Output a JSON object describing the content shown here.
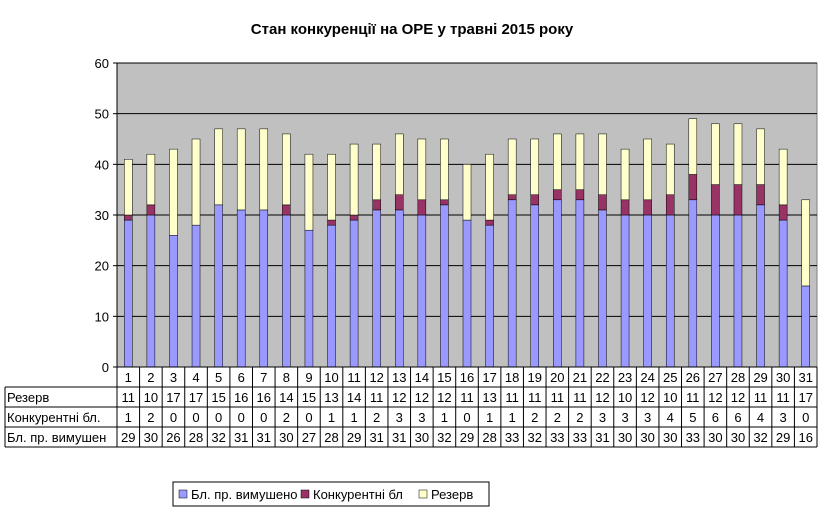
{
  "chart_data": {
    "type": "bar",
    "stacked": true,
    "title": "Стан конкуренції на ОРЕ  у травні 2015 року",
    "categories": [
      "1",
      "2",
      "3",
      "4",
      "5",
      "6",
      "7",
      "8",
      "9",
      "10",
      "11",
      "12",
      "13",
      "14",
      "15",
      "16",
      "17",
      "18",
      "19",
      "20",
      "21",
      "22",
      "23",
      "24",
      "25",
      "26",
      "27",
      "28",
      "29",
      "30",
      "31"
    ],
    "ylim": [
      0,
      60
    ],
    "yticks": [
      0,
      10,
      20,
      30,
      40,
      50,
      60
    ],
    "grid": true,
    "legend_position": "bottom",
    "data_table": true,
    "series": [
      {
        "name": "Бл. пр. вимушено",
        "table_label": "Бл. пр. вимушен",
        "color": "#9999ff",
        "values": [
          29,
          30,
          26,
          28,
          32,
          31,
          31,
          30,
          27,
          28,
          29,
          31,
          31,
          30,
          32,
          29,
          28,
          33,
          32,
          33,
          33,
          31,
          30,
          30,
          30,
          33,
          30,
          30,
          32,
          29,
          16
        ]
      },
      {
        "name": "Конкурентні бл",
        "table_label": "Конкурентні бл.",
        "color": "#993366",
        "values": [
          1,
          2,
          0,
          0,
          0,
          0,
          0,
          2,
          0,
          1,
          1,
          2,
          3,
          3,
          1,
          0,
          1,
          1,
          2,
          2,
          2,
          3,
          3,
          3,
          4,
          5,
          6,
          6,
          4,
          3,
          0
        ]
      },
      {
        "name": "Резерв",
        "table_label": "Резерв",
        "color": "#ffffcc",
        "values": [
          11,
          10,
          17,
          17,
          15,
          16,
          16,
          14,
          15,
          13,
          14,
          11,
          12,
          12,
          12,
          11,
          13,
          11,
          11,
          11,
          11,
          12,
          10,
          12,
          10,
          11,
          12,
          12,
          11,
          11,
          17
        ]
      }
    ]
  }
}
